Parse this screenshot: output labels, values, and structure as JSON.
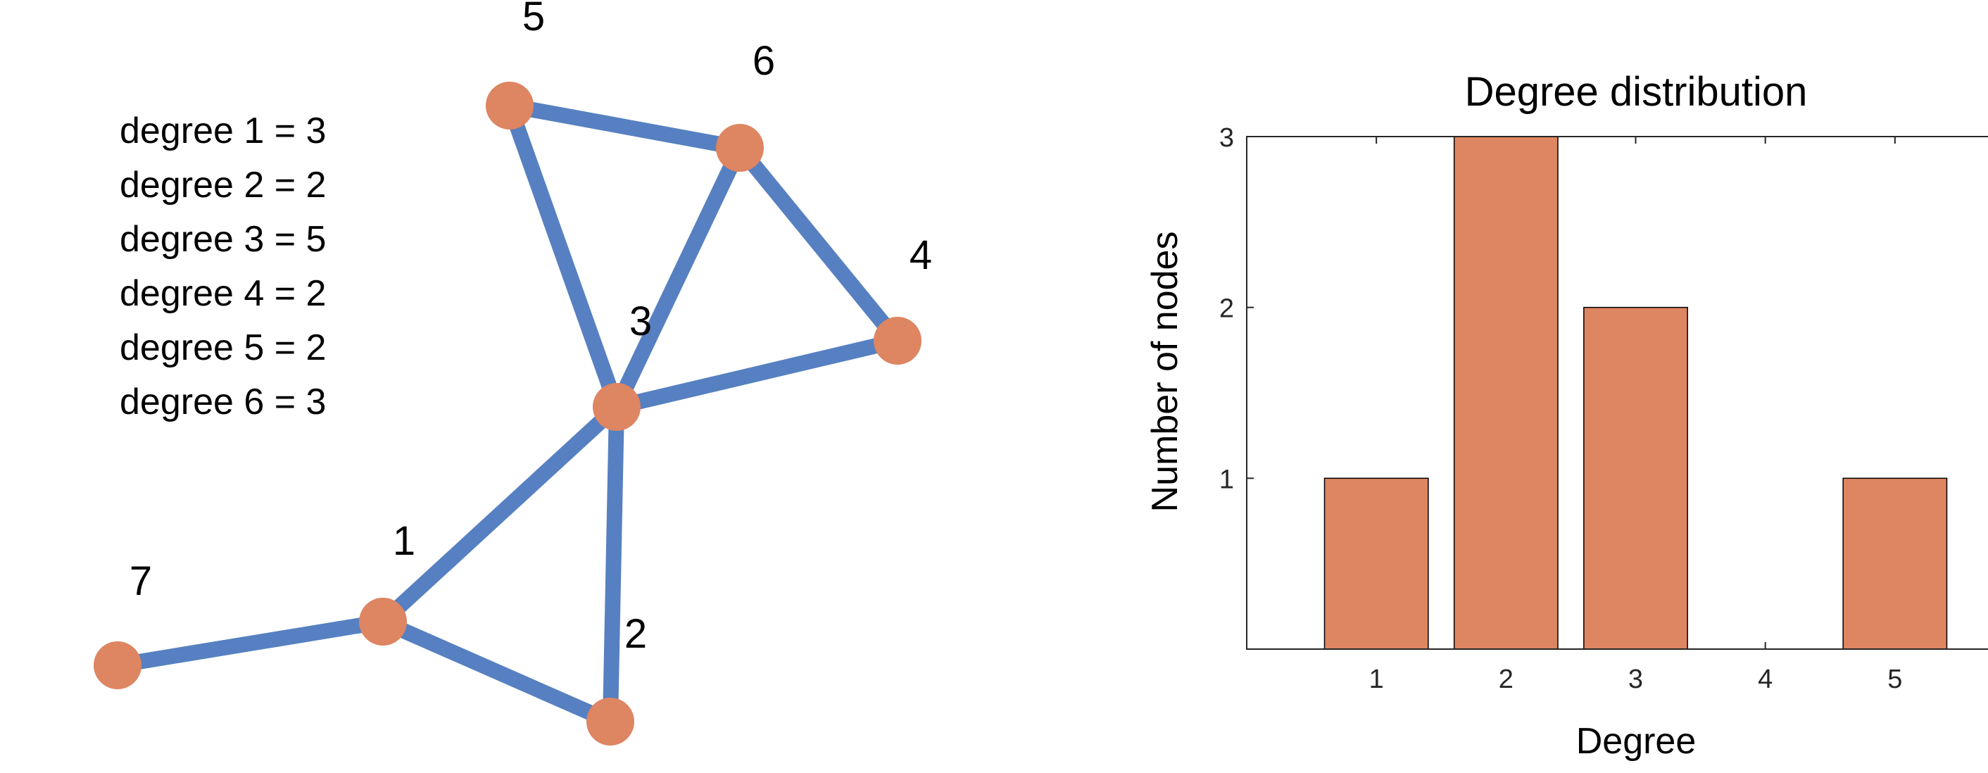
{
  "network": {
    "node_color": "#DE8562",
    "edge_color": "#5680C1",
    "nodes": [
      {
        "id": "1"
      },
      {
        "id": "2"
      },
      {
        "id": "3"
      },
      {
        "id": "4"
      },
      {
        "id": "5"
      },
      {
        "id": "6"
      },
      {
        "id": "7"
      }
    ],
    "edges": [
      [
        "5",
        "6"
      ],
      [
        "5",
        "3"
      ],
      [
        "6",
        "3"
      ],
      [
        "6",
        "4"
      ],
      [
        "3",
        "4"
      ],
      [
        "3",
        "1"
      ],
      [
        "3",
        "2"
      ],
      [
        "1",
        "2"
      ],
      [
        "1",
        "7"
      ]
    ]
  },
  "degree_list": [
    "degree 1 = 3",
    "degree 2 = 2",
    "degree 3 = 5",
    "degree 4 = 2",
    "degree 5 = 2",
    "degree 6 = 3"
  ],
  "chart_data": {
    "type": "bar",
    "title": "Degree distribution",
    "xlabel": "Degree",
    "ylabel": "Number of nodes",
    "categories": [
      "1",
      "2",
      "3",
      "4",
      "5"
    ],
    "values": [
      1,
      3,
      2,
      0,
      1
    ],
    "xlim": [
      0,
      6
    ],
    "ylim": [
      0,
      3
    ],
    "yticks": [
      "1",
      "2",
      "3"
    ],
    "bar_color": "#DE8562",
    "grid": false,
    "legend": "none"
  }
}
